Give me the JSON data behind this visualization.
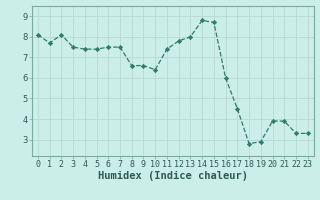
{
  "x": [
    0,
    1,
    2,
    3,
    4,
    5,
    6,
    7,
    8,
    9,
    10,
    11,
    12,
    13,
    14,
    15,
    16,
    17,
    18,
    19,
    20,
    21,
    22,
    23
  ],
  "y": [
    8.1,
    7.7,
    8.1,
    7.5,
    7.4,
    7.4,
    7.5,
    7.5,
    6.6,
    6.6,
    6.4,
    7.4,
    7.8,
    8.0,
    8.8,
    8.7,
    6.0,
    4.5,
    2.8,
    2.9,
    3.9,
    3.9,
    3.3,
    3.3
  ],
  "line_color": "#2d7d6e",
  "marker": "D",
  "marker_size": 2.2,
  "bg_color": "#cceee8",
  "grid_color": "#b8d8d2",
  "xlabel": "Humidex (Indice chaleur)",
  "xlim": [
    -0.5,
    23.5
  ],
  "ylim": [
    2.2,
    9.5
  ],
  "yticks": [
    3,
    4,
    5,
    6,
    7,
    8,
    9
  ],
  "xtick_labels": [
    "0",
    "1",
    "2",
    "3",
    "4",
    "5",
    "6",
    "7",
    "8",
    "9",
    "10",
    "11",
    "12",
    "13",
    "14",
    "15",
    "16",
    "17",
    "18",
    "19",
    "20",
    "21",
    "22",
    "23"
  ],
  "xlabel_fontsize": 7.5,
  "tick_fontsize": 6.0
}
